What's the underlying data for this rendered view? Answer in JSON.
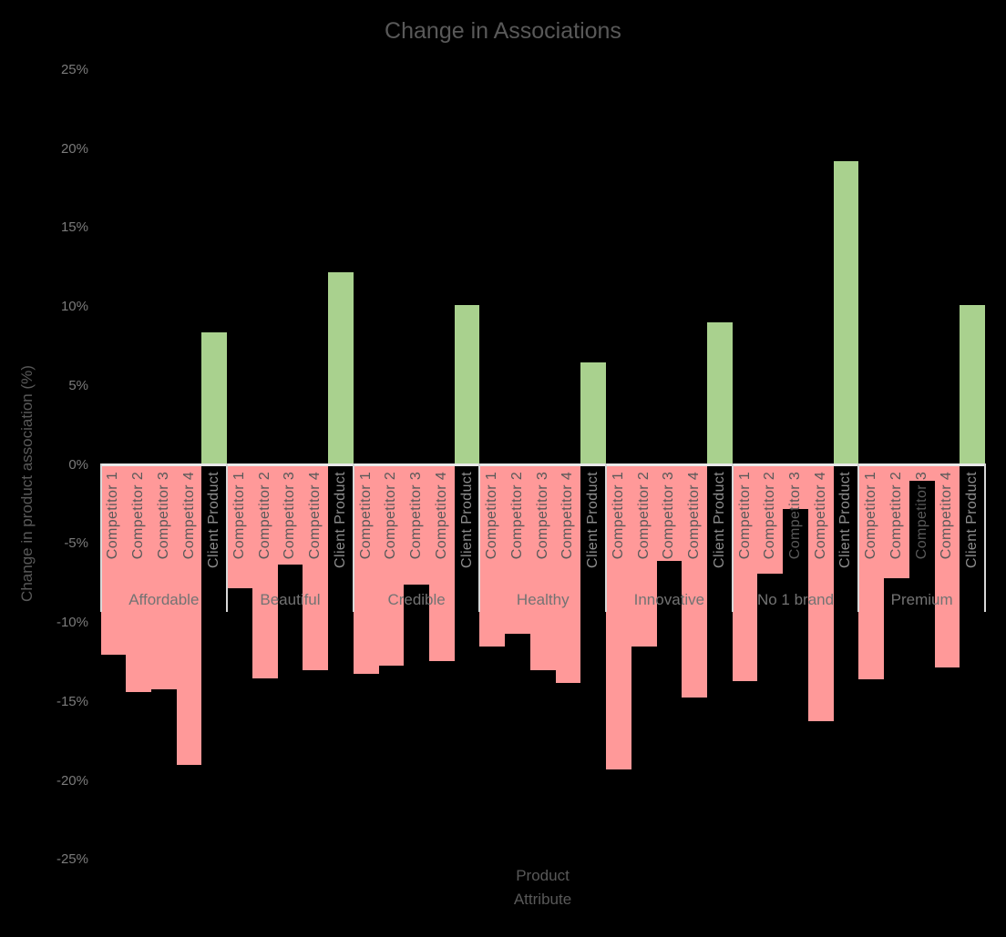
{
  "title": "Change in Associations",
  "axes": {
    "y_title": "Change in product association (%)",
    "x_title_line1": "Product",
    "x_title_line2": "Attribute"
  },
  "colors": {
    "competitor_bar": "#FF9999",
    "client_bar": "#A9D18E",
    "background": "#000000",
    "axis_line": "#e9e9e9",
    "text_gray": "#595959"
  },
  "chart_data": {
    "type": "bar",
    "title": "Change in Associations",
    "xlabel": "Product Attribute",
    "ylabel": "Change in product association (%)",
    "ylim": [
      -25,
      25
    ],
    "grid": false,
    "legend_position": "none",
    "bar_label_rotation": -90,
    "yticks": [
      {
        "value": 25,
        "label": "25%"
      },
      {
        "value": 20,
        "label": "20%"
      },
      {
        "value": 15,
        "label": "15%"
      },
      {
        "value": 10,
        "label": "10%"
      },
      {
        "value": 5,
        "label": "5%"
      },
      {
        "value": 0,
        "label": "0%"
      },
      {
        "value": -5,
        "label": "-5%"
      },
      {
        "value": -10,
        "label": "-10%"
      },
      {
        "value": -15,
        "label": "-15%"
      },
      {
        "value": -20,
        "label": "-20%"
      },
      {
        "value": -25,
        "label": "-25%"
      }
    ],
    "categories": [
      "Affordable",
      "Beautiful",
      "Credible",
      "Healthy",
      "Innovative",
      "No 1 brand",
      "Premium"
    ],
    "series": [
      {
        "name": "Competitor 1",
        "role": "competitor",
        "color": "#FF9999",
        "values": [
          -12.0,
          -7.8,
          -13.2,
          -11.5,
          -19.3,
          -13.7,
          -13.6
        ]
      },
      {
        "name": "Competitor 2",
        "role": "competitor",
        "color": "#FF9999",
        "values": [
          -14.4,
          -13.5,
          -12.7,
          -10.7,
          -11.5,
          -6.9,
          -7.2
        ]
      },
      {
        "name": "Competitor 3",
        "role": "competitor",
        "color": "#FF9999",
        "values": [
          -14.2,
          -6.3,
          -7.6,
          -13.0,
          -6.1,
          -2.8,
          -1.0
        ]
      },
      {
        "name": "Competitor 4",
        "role": "competitor",
        "color": "#FF9999",
        "values": [
          -19.0,
          -13.0,
          -12.4,
          -13.8,
          -14.7,
          -16.2,
          -12.8
        ]
      },
      {
        "name": "Client Product",
        "role": "client",
        "color": "#A9D18E",
        "values": [
          8.4,
          12.2,
          10.1,
          6.5,
          9.0,
          19.2,
          10.1
        ]
      }
    ]
  }
}
